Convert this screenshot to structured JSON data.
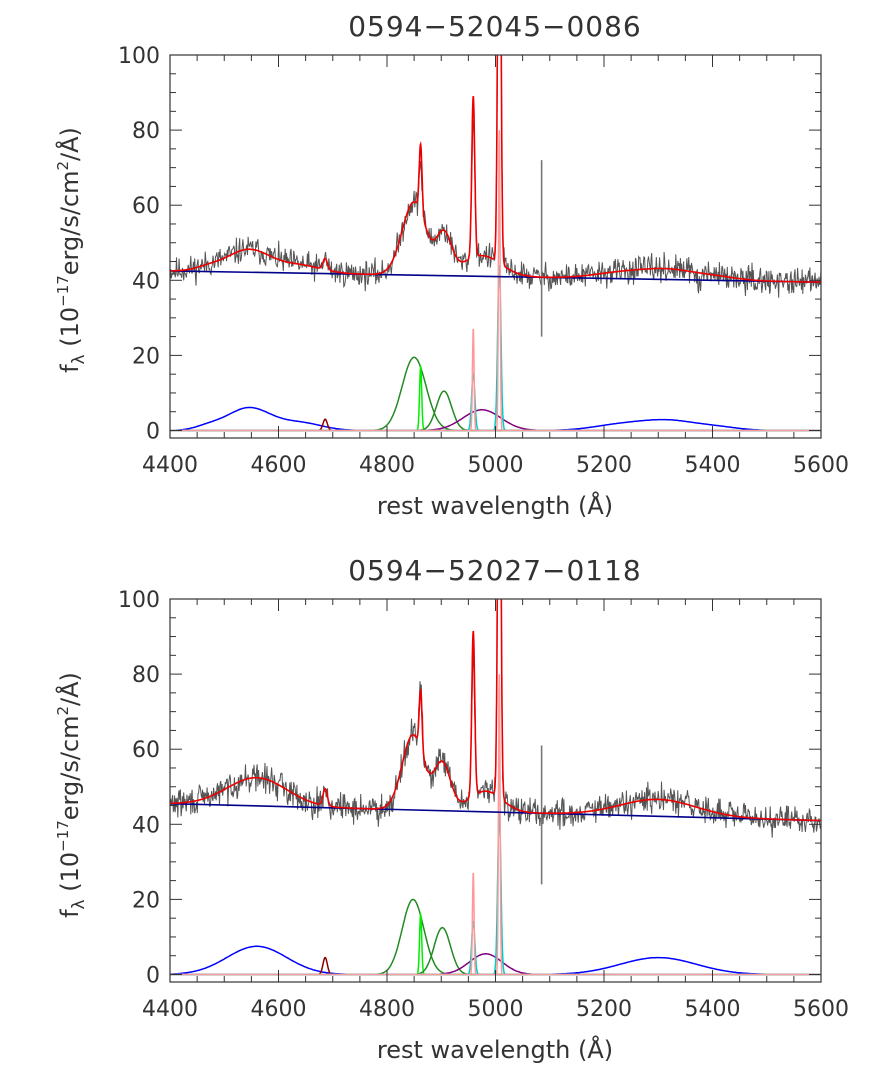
{
  "chart_data": [
    {
      "type": "line",
      "title": "0594−52045−0086",
      "xlabel": "rest wavelength (Å)",
      "ylabel": "fλ (10⁻¹⁷erg/s/cm²/Å)",
      "ylabel_parts": {
        "symbol": "f",
        "sub": "λ",
        "open": " (10",
        "exp1": "−17",
        "mid": "erg/s/cm",
        "exp2": "2",
        "close": "/Å)"
      },
      "xlim": [
        4400,
        5600
      ],
      "ylim": [
        -2,
        100
      ],
      "xticks": [
        4400,
        4600,
        4800,
        5000,
        5200,
        5400,
        5600
      ],
      "yticks": [
        0,
        20,
        40,
        60,
        80,
        100
      ],
      "grid": false,
      "legend": "none",
      "continuum": {
        "x": [
          4400,
          5600
        ],
        "y": [
          42.5,
          39.5
        ],
        "color": "#00008b"
      },
      "components": [
        {
          "color": "#0000ff",
          "broad_multi": [
            [
              4545,
              40,
              6
            ],
            [
              4640,
              40,
              2
            ],
            [
              4470,
              25,
              1
            ],
            [
              5230,
              50,
              1.5
            ],
            [
              5320,
              50,
              2.5
            ],
            [
              5410,
              40,
              0.8
            ]
          ]
        },
        {
          "color": "#8b0000",
          "center": 4686,
          "sigma": 4,
          "amp": 3
        },
        {
          "color": "#228b22",
          "center": 4850,
          "sigma": 22,
          "amp": 19.5
        },
        {
          "color": "#00ee00",
          "center": 4862,
          "sigma": 2,
          "amp": 17
        },
        {
          "color": "#228b22",
          "center": 4905,
          "sigma": 14,
          "amp": 10.5
        },
        {
          "color": "#800080",
          "center": 4975,
          "sigma": 35,
          "amp": 5.5
        },
        {
          "color": "#00cccc",
          "center": 4959,
          "sigma": 3,
          "amp": 15
        },
        {
          "color": "#ff9999",
          "center": 4959,
          "sigma": 1.5,
          "amp": 27
        },
        {
          "color": "#00cccc",
          "center": 5007,
          "sigma": 3,
          "amp": 44
        },
        {
          "color": "#ff9999",
          "center": 5007,
          "sigma": 1.5,
          "amp": 80
        }
      ],
      "model_peaks": {
        "hbeta": 80,
        "oiii4959": 85,
        "oiii5007": 140
      },
      "data_peaks": {
        "hbeta": 75,
        "oiii4959": 80,
        "oiii5007": 130
      },
      "spike": {
        "x": 5085,
        "ymin": 25,
        "ymax": 72
      },
      "noise": 2.2,
      "seed": 11
    },
    {
      "type": "line",
      "title": "0594−52027−0118",
      "xlabel": "rest wavelength (Å)",
      "ylabel": "fλ (10⁻¹⁷erg/s/cm²/Å)",
      "ylabel_parts": {
        "symbol": "f",
        "sub": "λ",
        "open": " (10",
        "exp1": "−17",
        "mid": "erg/s/cm",
        "exp2": "2",
        "close": "/Å)"
      },
      "xlim": [
        4400,
        5600
      ],
      "ylim": [
        -2,
        100
      ],
      "xticks": [
        4400,
        4600,
        4800,
        5000,
        5200,
        5400,
        5600
      ],
      "yticks": [
        0,
        20,
        40,
        60,
        80,
        100
      ],
      "grid": false,
      "legend": "none",
      "continuum": {
        "x": [
          4400,
          5600
        ],
        "y": [
          45.5,
          41.0
        ],
        "color": "#00008b"
      },
      "components": [
        {
          "color": "#0000ff",
          "broad_multi": [
            [
              4560,
              55,
              7.5
            ],
            [
              5300,
              70,
              4.5
            ]
          ]
        },
        {
          "color": "#8b0000",
          "center": 4686,
          "sigma": 4,
          "amp": 4.5
        },
        {
          "color": "#228b22",
          "center": 4848,
          "sigma": 20,
          "amp": 20
        },
        {
          "color": "#00ee00",
          "center": 4862,
          "sigma": 2,
          "amp": 16
        },
        {
          "color": "#228b22",
          "center": 4902,
          "sigma": 15,
          "amp": 12.5
        },
        {
          "color": "#800080",
          "center": 4982,
          "sigma": 30,
          "amp": 5.5
        },
        {
          "color": "#00cccc",
          "center": 4959,
          "sigma": 3,
          "amp": 14
        },
        {
          "color": "#ff9999",
          "center": 4959,
          "sigma": 1.5,
          "amp": 27
        },
        {
          "color": "#00cccc",
          "center": 5007,
          "sigma": 3,
          "amp": 43
        },
        {
          "color": "#ff9999",
          "center": 5007,
          "sigma": 1.5,
          "amp": 80
        }
      ],
      "model_peaks": {
        "hbeta": 78,
        "oiii4959": 87,
        "oiii5007": 140
      },
      "data_peaks": {
        "hbeta": 80,
        "oiii4959": 82,
        "oiii5007": 130
      },
      "spike": {
        "x": 5085,
        "ymin": 24,
        "ymax": 61
      },
      "noise": 2.4,
      "seed": 29
    }
  ]
}
